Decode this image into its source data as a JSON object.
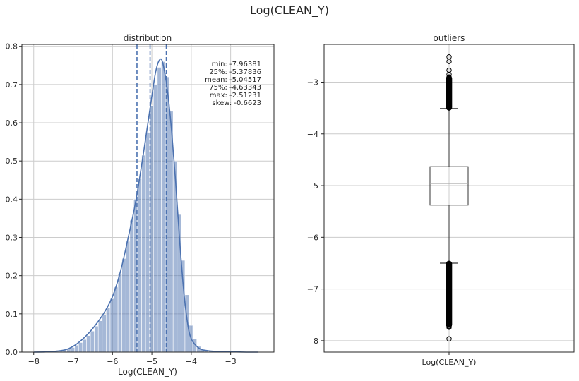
{
  "suptitle": "Log(CLEAN_Y)",
  "colors": {
    "hist": "#4c72b0",
    "grid": "#cccccc",
    "axis": "#262626"
  },
  "chart_data": [
    {
      "type": "histogram",
      "title": "distribution",
      "xlabel": "Log(CLEAN_Y)",
      "ylabel": "",
      "xlim": [
        -8.3,
        -1.9
      ],
      "ylim": [
        0,
        0.805
      ],
      "xticks": [
        -8,
        -7,
        -6,
        -5,
        -4,
        -3
      ],
      "xtick_labels": [
        "−8",
        "−7",
        "−6",
        "−5",
        "−4",
        "−3"
      ],
      "yticks": [
        0,
        0.1,
        0.2,
        0.3,
        0.4,
        0.5,
        0.6,
        0.7,
        0.8
      ],
      "ytick_labels": [
        "0.0",
        "0.1",
        "0.2",
        "0.3",
        "0.4",
        "0.5",
        "0.6",
        "0.7",
        "0.8"
      ],
      "grid": true,
      "bins": [
        [
          -7.96,
          0.001
        ],
        [
          -7.86,
          0.001
        ],
        [
          -7.76,
          0.001
        ],
        [
          -7.66,
          0.002
        ],
        [
          -7.56,
          0.002
        ],
        [
          -7.46,
          0.003
        ],
        [
          -7.36,
          0.004
        ],
        [
          -7.26,
          0.005
        ],
        [
          -7.16,
          0.008
        ],
        [
          -7.06,
          0.012
        ],
        [
          -6.96,
          0.018
        ],
        [
          -6.86,
          0.025
        ],
        [
          -6.76,
          0.033
        ],
        [
          -6.66,
          0.043
        ],
        [
          -6.56,
          0.055
        ],
        [
          -6.46,
          0.068
        ],
        [
          -6.36,
          0.082
        ],
        [
          -6.26,
          0.098
        ],
        [
          -6.16,
          0.117
        ],
        [
          -6.06,
          0.14
        ],
        [
          -5.96,
          0.17
        ],
        [
          -5.86,
          0.205
        ],
        [
          -5.76,
          0.245
        ],
        [
          -5.66,
          0.29
        ],
        [
          -5.56,
          0.345
        ],
        [
          -5.46,
          0.4
        ],
        [
          -5.36,
          0.455
        ],
        [
          -5.26,
          0.515
        ],
        [
          -5.16,
          0.575
        ],
        [
          -5.06,
          0.645
        ],
        [
          -4.96,
          0.7
        ],
        [
          -4.86,
          0.745
        ],
        [
          -4.76,
          0.76
        ],
        [
          -4.66,
          0.72
        ],
        [
          -4.56,
          0.63
        ],
        [
          -4.46,
          0.5
        ],
        [
          -4.36,
          0.36
        ],
        [
          -4.26,
          0.24
        ],
        [
          -4.16,
          0.15
        ],
        [
          -4.06,
          0.07
        ],
        [
          -3.96,
          0.035
        ],
        [
          -3.86,
          0.015
        ],
        [
          -3.76,
          0.007
        ],
        [
          -3.66,
          0.004
        ],
        [
          -3.56,
          0.003
        ],
        [
          -3.46,
          0.002
        ],
        [
          -3.36,
          0.001
        ],
        [
          -3.26,
          0.001
        ],
        [
          -3.16,
          0.001
        ],
        [
          -3.06,
          0.001
        ]
      ],
      "bin_width": 0.1,
      "kde": [
        [
          -8.0,
          0.0
        ],
        [
          -7.6,
          0.001
        ],
        [
          -7.2,
          0.006
        ],
        [
          -7.0,
          0.015
        ],
        [
          -6.8,
          0.03
        ],
        [
          -6.6,
          0.05
        ],
        [
          -6.4,
          0.075
        ],
        [
          -6.2,
          0.105
        ],
        [
          -6.0,
          0.145
        ],
        [
          -5.8,
          0.21
        ],
        [
          -5.6,
          0.3
        ],
        [
          -5.4,
          0.4
        ],
        [
          -5.2,
          0.53
        ],
        [
          -5.0,
          0.67
        ],
        [
          -4.9,
          0.735
        ],
        [
          -4.8,
          0.765
        ],
        [
          -4.72,
          0.755
        ],
        [
          -4.6,
          0.68
        ],
        [
          -4.5,
          0.58
        ],
        [
          -4.4,
          0.45
        ],
        [
          -4.3,
          0.3
        ],
        [
          -4.2,
          0.17
        ],
        [
          -4.1,
          0.08
        ],
        [
          -4.0,
          0.035
        ],
        [
          -3.8,
          0.01
        ],
        [
          -3.6,
          0.004
        ],
        [
          -3.4,
          0.002
        ],
        [
          -3.0,
          0.001
        ],
        [
          -2.6,
          0.0
        ],
        [
          -2.3,
          0.0
        ]
      ],
      "vlines": [
        -5.37836,
        -5.04517,
        -4.63343
      ],
      "stats_lines": [
        "min: -7.96381",
        "25%: -5.37836",
        "mean: -5.04517",
        "75%: -4.63343",
        "max: -2.51231",
        "skew: -0.6623"
      ]
    },
    {
      "type": "boxplot",
      "title": "outliers",
      "xlabel": "Log(CLEAN_Y)",
      "ylim": [
        -8.22,
        -2.27
      ],
      "yticks": [
        -8,
        -7,
        -6,
        -5,
        -4,
        -3
      ],
      "ytick_labels": [
        "−8",
        "−7",
        "−6",
        "−5",
        "−4",
        "−3"
      ],
      "grid": true,
      "box": {
        "q1": -5.37836,
        "median": -4.96,
        "q3": -4.63343,
        "whisker_low": -6.5,
        "whisker_high": -3.51
      },
      "fliers_high": [
        -2.51231,
        -2.6,
        -2.77,
        -2.85,
        -2.9
      ],
      "fliers_low": [
        -7.72,
        -7.74,
        -7.96381
      ],
      "flier_bands": [
        [
          -3.5,
          -2.92
        ],
        [
          -7.7,
          -6.5
        ]
      ]
    }
  ]
}
